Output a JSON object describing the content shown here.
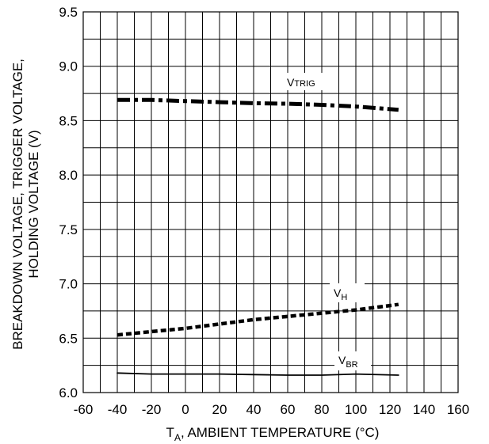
{
  "chart_data": {
    "type": "line",
    "xlabel": "T_A, AMBIENT TEMPERATURE (°C)",
    "xlabel_main": "T",
    "xlabel_sub": "A",
    "xlabel_rest": ", AMBIENT TEMPERATURE (°C)",
    "ylabel_line1": "BREAKDOWN VOLTAGE, TRIGGER VOLTAGE,",
    "ylabel_line2": "HOLDING VOLTAGE (V)",
    "xlim": [
      -60,
      160
    ],
    "ylim": [
      6.0,
      9.5
    ],
    "grid": true,
    "x_ticks": [
      -60,
      -40,
      -20,
      0,
      20,
      40,
      60,
      80,
      100,
      120,
      140,
      160
    ],
    "x_tick_labels": [
      "-60",
      "-40",
      "-20",
      "0",
      "20",
      "40",
      "60",
      "80",
      "100",
      "120",
      "140",
      "160"
    ],
    "y_ticks": [
      6.0,
      6.5,
      7.0,
      7.5,
      8.0,
      8.5,
      9.0,
      9.5
    ],
    "y_tick_labels": [
      "6.0",
      "6.5",
      "7.0",
      "7.5",
      "8.0",
      "8.5",
      "9.0",
      "9.5"
    ],
    "series": [
      {
        "label_main": "V",
        "label_sub": "TRIG",
        "style": "dash-dot",
        "x": [
          -40,
          -20,
          0,
          20,
          40,
          60,
          80,
          100,
          125
        ],
        "y": [
          8.69,
          8.69,
          8.68,
          8.67,
          8.66,
          8.655,
          8.645,
          8.63,
          8.6
        ]
      },
      {
        "label_main": "V",
        "label_sub": "H",
        "style": "dotted",
        "x": [
          -40,
          -20,
          0,
          20,
          40,
          60,
          80,
          100,
          125
        ],
        "y": [
          6.53,
          6.56,
          6.59,
          6.63,
          6.67,
          6.7,
          6.73,
          6.76,
          6.81
        ]
      },
      {
        "label_main": "V",
        "label_sub": "BR",
        "style": "solid",
        "x": [
          -40,
          -20,
          0,
          20,
          40,
          60,
          80,
          100,
          125
        ],
        "y": [
          6.18,
          6.17,
          6.17,
          6.17,
          6.165,
          6.16,
          6.16,
          6.17,
          6.16
        ]
      }
    ],
    "colors": {
      "line": "#000000",
      "grid": "#000000",
      "background": "#ffffff"
    }
  }
}
